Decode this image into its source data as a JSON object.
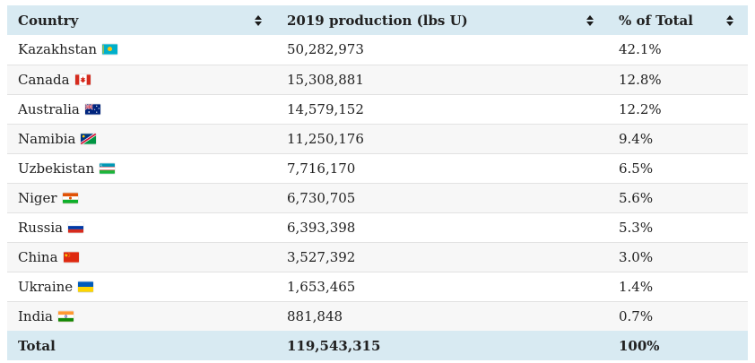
{
  "colors": {
    "header_bg": "#d8eaf2",
    "alt_row_bg": "#f7f7f7",
    "row_border": "#e2e2e2",
    "text": "#212121"
  },
  "table": {
    "columns": [
      {
        "label": "Country",
        "sort_icon": "sort-toggle-icon"
      },
      {
        "label": "2019 production (lbs U)",
        "sort_icon": "sort-toggle-icon"
      },
      {
        "label": "% of Total",
        "sort_icon": "sort-toggle-icon"
      }
    ],
    "rows": [
      {
        "country": "Kazakhstan",
        "flag_icon": "kazakhstan-flag-icon",
        "production": "50,282,973",
        "percent": "42.1%"
      },
      {
        "country": "Canada",
        "flag_icon": "canada-flag-icon",
        "production": "15,308,881",
        "percent": "12.8%"
      },
      {
        "country": "Australia",
        "flag_icon": "australia-flag-icon",
        "production": "14,579,152",
        "percent": "12.2%"
      },
      {
        "country": "Namibia",
        "flag_icon": "namibia-flag-icon",
        "production": "11,250,176",
        "percent": "9.4%"
      },
      {
        "country": "Uzbekistan",
        "flag_icon": "uzbekistan-flag-icon",
        "production": "7,716,170",
        "percent": "6.5%"
      },
      {
        "country": "Niger",
        "flag_icon": "niger-flag-icon",
        "production": "6,730,705",
        "percent": "5.6%"
      },
      {
        "country": "Russia",
        "flag_icon": "russia-flag-icon",
        "production": "6,393,398",
        "percent": "5.3%"
      },
      {
        "country": "China",
        "flag_icon": "china-flag-icon",
        "production": "3,527,392",
        "percent": "3.0%"
      },
      {
        "country": "Ukraine",
        "flag_icon": "ukraine-flag-icon",
        "production": "1,653,465",
        "percent": "1.4%"
      },
      {
        "country": "India",
        "flag_icon": "india-flag-icon",
        "production": "881,848",
        "percent": "0.7%"
      }
    ],
    "total_row": {
      "label": "Total",
      "production": "119,543,315",
      "percent": "100%"
    }
  }
}
